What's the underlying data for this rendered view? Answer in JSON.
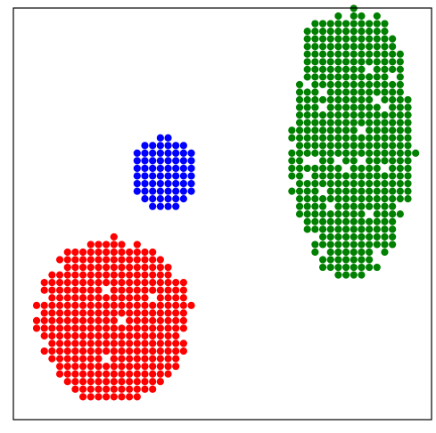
{
  "chart_data": {
    "type": "scatter",
    "title": "",
    "xlabel": "",
    "ylabel": "",
    "xlim": [
      0,
      100
    ],
    "ylim": [
      0,
      100
    ],
    "grid": false,
    "legend": "none",
    "axis_ticks_visible": false,
    "series": [
      {
        "color": "#0000ff",
        "clusters": [
          {
            "center": [
              36,
              60
            ],
            "spread": [
              14,
              16
            ],
            "count": 95,
            "seed": 11
          }
        ]
      },
      {
        "color": "#008000",
        "clusters": [
          {
            "center": [
              81,
              67
            ],
            "spread": [
              30,
              69
            ],
            "count": 420,
            "seed": 23
          },
          {
            "center": [
              80,
              94
            ],
            "spread": [
              20,
              6
            ],
            "count": 28,
            "seed": 101
          }
        ]
      },
      {
        "color": "#ff0000",
        "clusters": [
          {
            "center": [
              24,
              24
            ],
            "spread": [
              38,
              40
            ],
            "count": 330,
            "seed": 37
          }
        ]
      }
    ]
  }
}
